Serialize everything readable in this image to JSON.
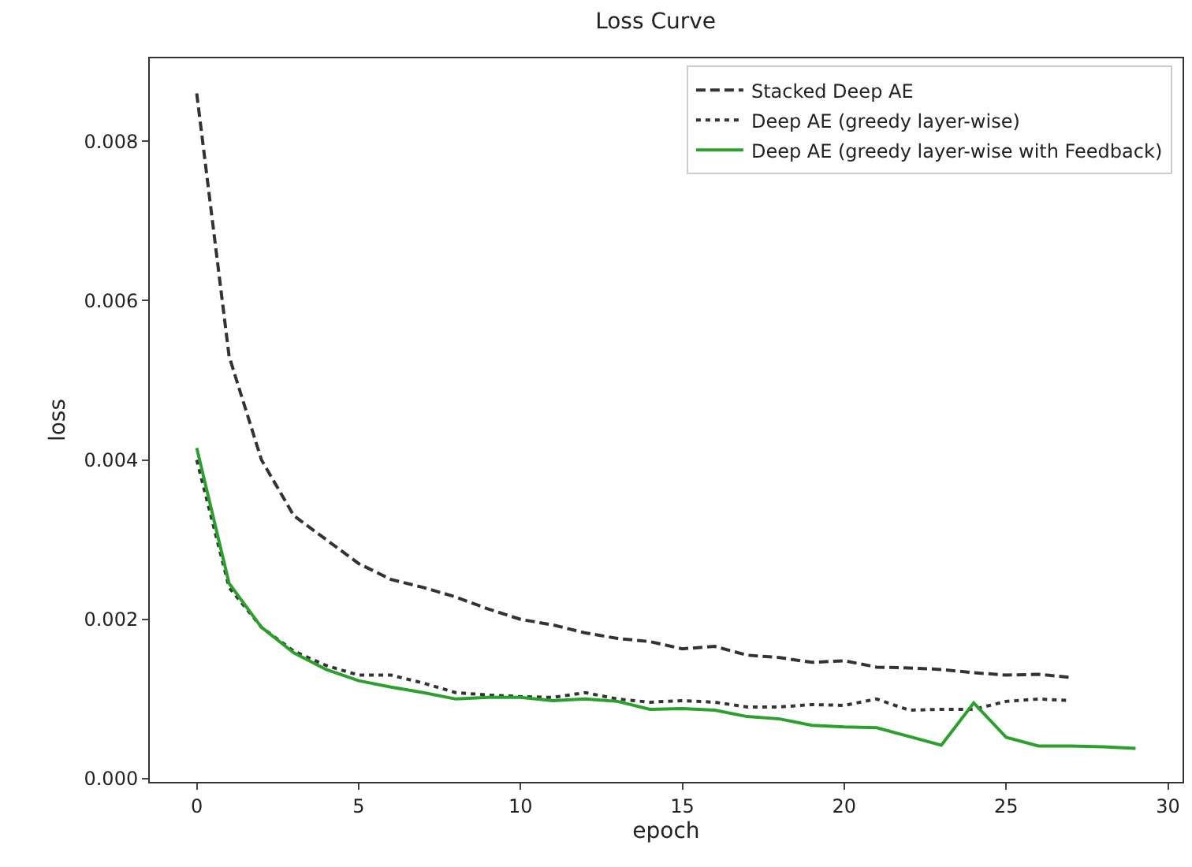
{
  "chart_data": {
    "type": "line",
    "title": "Loss Curve",
    "xlabel": "epoch",
    "ylabel": "loss",
    "x": [
      0,
      1,
      2,
      3,
      4,
      5,
      6,
      7,
      8,
      9,
      10,
      11,
      12,
      13,
      14,
      15,
      16,
      17,
      18,
      19,
      20,
      21,
      22,
      23,
      24,
      25,
      26,
      27,
      28,
      29
    ],
    "series": [
      {
        "name": "Stacked Deep AE",
        "color": "#333333",
        "line_style": "dashed",
        "x": [
          0,
          1,
          2,
          3,
          4,
          5,
          6,
          7,
          8,
          9,
          10,
          11,
          12,
          13,
          14,
          15,
          16,
          17,
          18,
          19,
          20,
          21,
          22,
          23,
          24,
          25,
          26,
          27
        ],
        "values": [
          0.0086,
          0.0053,
          0.004,
          0.0033,
          0.003,
          0.0027,
          0.0025,
          0.0024,
          0.00228,
          0.00213,
          0.002,
          0.00193,
          0.00183,
          0.00176,
          0.00172,
          0.00163,
          0.00166,
          0.00155,
          0.00152,
          0.00146,
          0.00148,
          0.0014,
          0.00139,
          0.00137,
          0.00133,
          0.0013,
          0.00131,
          0.00127
        ]
      },
      {
        "name": "Deep AE (greedy layer-wise)",
        "color": "#333333",
        "line_style": "dotted",
        "x": [
          0,
          1,
          2,
          3,
          4,
          5,
          6,
          7,
          8,
          9,
          10,
          11,
          12,
          13,
          14,
          15,
          16,
          17,
          18,
          19,
          20,
          21,
          22,
          23,
          24,
          25,
          26,
          27
        ],
        "values": [
          0.004,
          0.0024,
          0.0019,
          0.0016,
          0.00142,
          0.0013,
          0.0013,
          0.0012,
          0.00108,
          0.00105,
          0.00103,
          0.00102,
          0.00108,
          0.001,
          0.00096,
          0.00098,
          0.00096,
          0.0009,
          0.0009,
          0.00093,
          0.00092,
          0.001,
          0.00086,
          0.00087,
          0.00087,
          0.00097,
          0.001,
          0.00098
        ]
      },
      {
        "name": "Deep AE (greedy layer-wise with Feedback)",
        "color": "#2ca02c",
        "line_style": "solid",
        "values": [
          0.00415,
          0.00245,
          0.0019,
          0.00158,
          0.00137,
          0.00123,
          0.00115,
          0.00108,
          0.001,
          0.00102,
          0.00102,
          0.00098,
          0.001,
          0.00097,
          0.00087,
          0.00088,
          0.00086,
          0.00078,
          0.00075,
          0.00067,
          0.00065,
          0.00064,
          0.00053,
          0.00042,
          0.00095,
          0.00052,
          0.00041,
          0.00041,
          0.0004,
          0.00038
        ]
      }
    ],
    "xlim": [
      -1.45,
      30.45
    ],
    "xticks": [
      0,
      5,
      10,
      15,
      20,
      25,
      30
    ],
    "ylim": [
      -4e-05,
      0.00904
    ],
    "yticks": [
      {
        "value": 0,
        "label": "0.000"
      },
      {
        "value": 0.002,
        "label": "0.002"
      },
      {
        "value": 0.004,
        "label": "0.004"
      },
      {
        "value": 0.006,
        "label": "0.006"
      },
      {
        "value": 0.008,
        "label": "0.008"
      }
    ],
    "grid": false,
    "legend": "top right",
    "marker": "none"
  }
}
